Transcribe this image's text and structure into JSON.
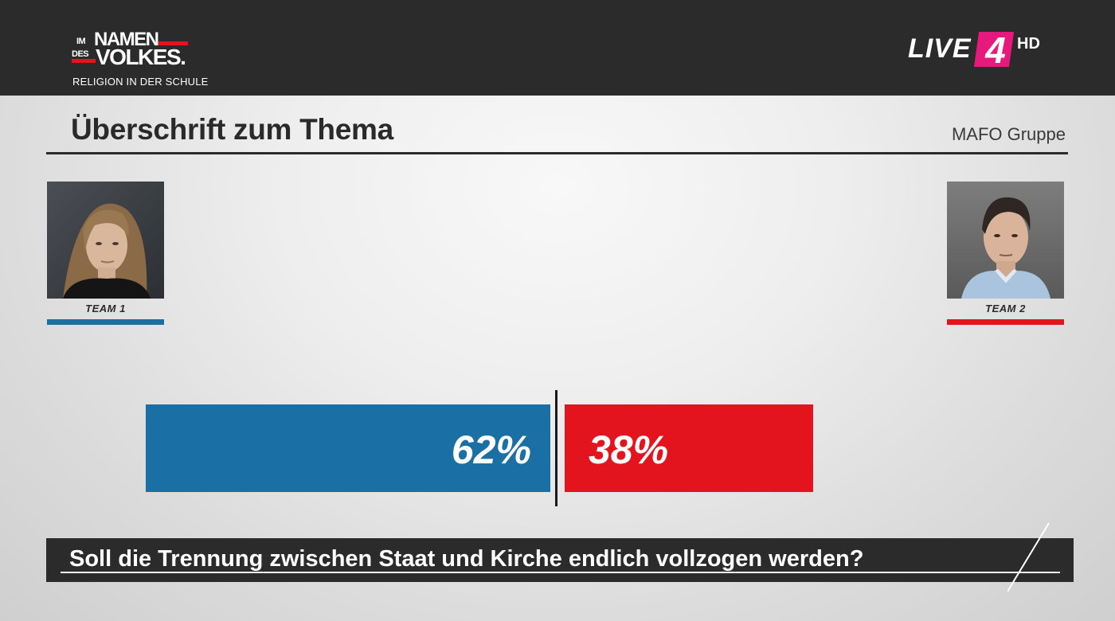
{
  "header": {
    "show_logo": {
      "im": "IM",
      "namen": "NAMEN",
      "des": "DES",
      "volkes": "VOLKES."
    },
    "episode_topic": "RELIGION IN DER SCHULE",
    "channel_logo": {
      "live": "LIVE",
      "four": "4",
      "hd": "HD"
    }
  },
  "main": {
    "title": "Überschrift zum Thema",
    "source": "MAFO Gruppe"
  },
  "teams": [
    {
      "label": "TEAM 1",
      "color": "#1a6fa5"
    },
    {
      "label": "TEAM 2",
      "color": "#e3141e"
    }
  ],
  "chart_data": {
    "type": "bar",
    "categories": [
      "TEAM 1",
      "TEAM 2"
    ],
    "values": [
      62,
      38
    ],
    "labels": [
      "62%",
      "38%"
    ],
    "colors": [
      "#1a6fa5",
      "#e3141e"
    ],
    "unit": "%"
  },
  "question": {
    "text": "Soll die Trennung zwischen Staat und Kirche endlich vollzogen werden?"
  },
  "colors": {
    "topbar": "#2b2b2b",
    "team1": "#1a6fa5",
    "team2": "#e3141e",
    "channel_accent": "#e8197d"
  }
}
